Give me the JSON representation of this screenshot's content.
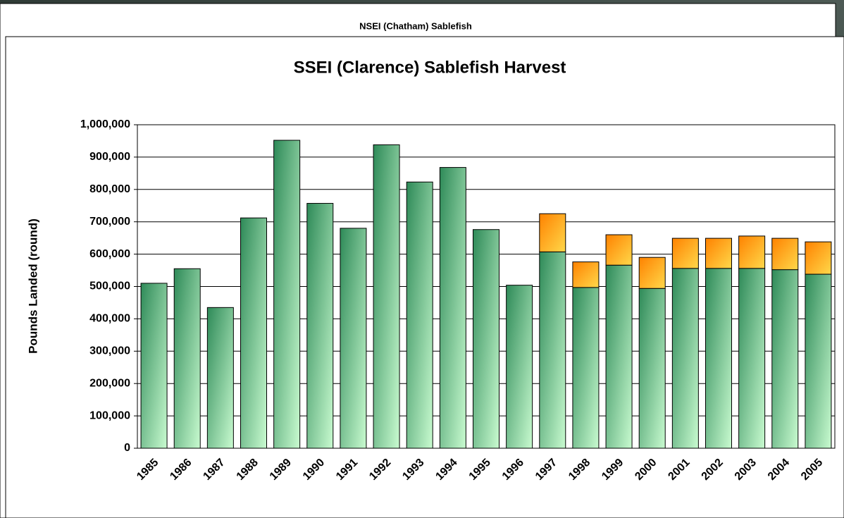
{
  "background_window": {
    "title": "NSEI (Chatham) Sablefish"
  },
  "chart_data": {
    "type": "stacked_bar",
    "title": "SSEI (Clarence) Sablefish Harvest",
    "y_label": "Pounds Landed (round)",
    "categories": [
      "1985",
      "1986",
      "1987",
      "1988",
      "1989",
      "1990",
      "1991",
      "1992",
      "1993",
      "1994",
      "1995",
      "1996",
      "1997",
      "1998",
      "1999",
      "2000",
      "2001",
      "2002",
      "2003",
      "2004",
      "2005"
    ],
    "series": [
      {
        "color": "#3a9a62",
        "values": [
          510000,
          555000,
          435000,
          712000,
          952000,
          757000,
          680000,
          938000,
          823000,
          868000,
          676000,
          504000,
          607000,
          497000,
          566000,
          494000,
          556000,
          556000,
          556000,
          552000,
          538000
        ]
      },
      {
        "color": "#ff9a10",
        "values": [
          null,
          null,
          null,
          null,
          null,
          null,
          null,
          null,
          null,
          null,
          null,
          null,
          118000,
          79000,
          94000,
          96000,
          93000,
          93000,
          100000,
          97000,
          100000
        ]
      }
    ],
    "ylim": [
      0,
      1000000
    ],
    "yticks": [
      0,
      {
        "value": 100000,
        "label": "100,000"
      },
      {
        "value": 200000,
        "label": "200,000"
      },
      {
        "value": 300000,
        "label": "300,000"
      },
      {
        "value": 400000,
        "label": "400,000"
      },
      {
        "value": 500000,
        "label": "500,000"
      },
      {
        "value": 600000,
        "label": "600,000"
      },
      {
        "value": 700000,
        "label": "700,000"
      },
      {
        "value": 800000,
        "label": "800,000"
      },
      {
        "value": 900000,
        "label": "900,000"
      },
      {
        "value": 1000000,
        "label": "1,000,000"
      }
    ],
    "grid": true
  }
}
